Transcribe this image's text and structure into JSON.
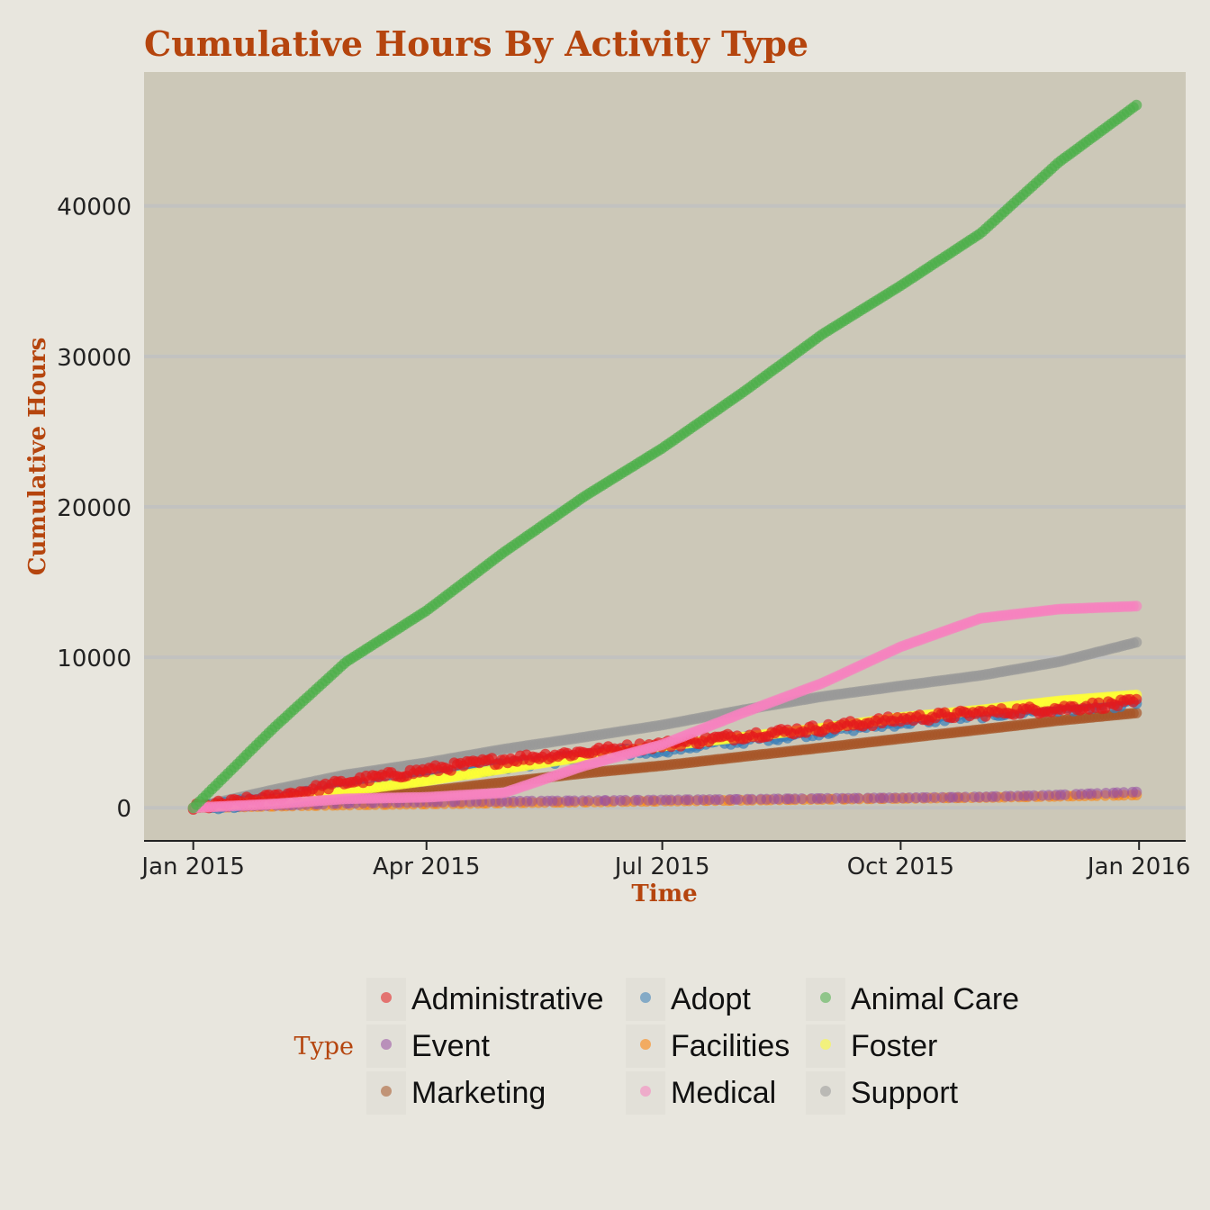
{
  "chart_data": {
    "type": "scatter",
    "title": "Cumulative Hours By Activity Type",
    "xlabel": "Time",
    "ylabel": "Cumulative Hours",
    "x_ticks": [
      "Jan 2015",
      "Apr 2015",
      "Jul 2015",
      "Oct 2015",
      "Jan 2016"
    ],
    "y_ticks": [
      0,
      10000,
      20000,
      30000,
      40000
    ],
    "xlim": [
      "2014-12-13",
      "2016-01-19"
    ],
    "ylim": [
      -2200,
      48900
    ],
    "grid": "horizontal",
    "legend_title": "Type",
    "legend_position": "bottom",
    "colors": {
      "background": "#e8e6de",
      "panel": "#ccc8b8",
      "grid": "#c2c2c0",
      "title": "#b5450e"
    },
    "series": [
      {
        "name": "Administrative",
        "color": "#e41a1c",
        "x": [
          "2015-01-01",
          "2015-02-01",
          "2015-03-01",
          "2015-04-01",
          "2015-05-01",
          "2015-06-01",
          "2015-07-01",
          "2015-08-01",
          "2015-09-01",
          "2015-10-01",
          "2015-11-01",
          "2015-12-01",
          "2015-12-31"
        ],
        "y": [
          0,
          700,
          1700,
          2500,
          3200,
          3700,
          4200,
          4800,
          5300,
          5900,
          6300,
          6600,
          7000
        ]
      },
      {
        "name": "Adopt",
        "color": "#377eb8",
        "x": [
          "2015-01-01",
          "2015-02-01",
          "2015-03-01",
          "2015-04-01",
          "2015-05-01",
          "2015-06-01",
          "2015-07-01",
          "2015-08-01",
          "2015-09-01",
          "2015-10-01",
          "2015-11-01",
          "2015-12-01",
          "2015-12-31"
        ],
        "y": [
          0,
          500,
          1300,
          2100,
          2800,
          3400,
          3900,
          4500,
          5100,
          5700,
          6200,
          6600,
          7000
        ]
      },
      {
        "name": "Animal Care",
        "color": "#4daf4a",
        "x": [
          "2015-01-01",
          "2015-02-01",
          "2015-03-01",
          "2015-04-01",
          "2015-05-01",
          "2015-06-01",
          "2015-07-01",
          "2015-08-01",
          "2015-09-01",
          "2015-10-01",
          "2015-11-01",
          "2015-12-01",
          "2015-12-31"
        ],
        "y": [
          0,
          5300,
          9700,
          13100,
          17000,
          20700,
          23900,
          27600,
          31500,
          34700,
          38200,
          42900,
          46700
        ]
      },
      {
        "name": "Event",
        "color": "#984ea3",
        "x": [
          "2015-01-01",
          "2015-02-01",
          "2015-03-01",
          "2015-04-01",
          "2015-05-01",
          "2015-06-01",
          "2015-07-01",
          "2015-08-01",
          "2015-09-01",
          "2015-10-01",
          "2015-11-01",
          "2015-12-01",
          "2015-12-31"
        ],
        "y": [
          0,
          150,
          300,
          380,
          430,
          470,
          520,
          560,
          620,
          660,
          720,
          850,
          1050
        ]
      },
      {
        "name": "Facilities",
        "color": "#ff7f00",
        "x": [
          "2015-01-01",
          "2015-02-01",
          "2015-03-01",
          "2015-04-01",
          "2015-05-01",
          "2015-06-01",
          "2015-07-01",
          "2015-08-01",
          "2015-09-01",
          "2015-10-01",
          "2015-11-01",
          "2015-12-01",
          "2015-12-31"
        ],
        "y": [
          0,
          100,
          180,
          250,
          320,
          380,
          440,
          500,
          560,
          620,
          680,
          760,
          850
        ]
      },
      {
        "name": "Foster",
        "color": "#ffff33",
        "x": [
          "2015-01-01",
          "2015-02-01",
          "2015-03-01",
          "2015-04-01",
          "2015-05-01",
          "2015-06-01",
          "2015-07-01",
          "2015-08-01",
          "2015-09-01",
          "2015-10-01",
          "2015-11-01",
          "2015-12-01",
          "2015-12-31"
        ],
        "y": [
          0,
          500,
          1100,
          1800,
          2600,
          3400,
          4100,
          4700,
          5300,
          6000,
          6500,
          7100,
          7500
        ]
      },
      {
        "name": "Marketing",
        "color": "#a65628",
        "x": [
          "2015-01-01",
          "2015-02-01",
          "2015-03-01",
          "2015-04-01",
          "2015-05-01",
          "2015-06-01",
          "2015-07-01",
          "2015-08-01",
          "2015-09-01",
          "2015-10-01",
          "2015-11-01",
          "2015-12-01",
          "2015-12-31"
        ],
        "y": [
          0,
          300,
          700,
          1100,
          1700,
          2300,
          2800,
          3400,
          4000,
          4600,
          5200,
          5800,
          6300
        ]
      },
      {
        "name": "Medical",
        "color": "#f781bf",
        "x": [
          "2015-01-01",
          "2015-02-01",
          "2015-03-01",
          "2015-04-01",
          "2015-05-01",
          "2015-06-01",
          "2015-07-01",
          "2015-08-01",
          "2015-09-01",
          "2015-10-01",
          "2015-11-01",
          "2015-12-01",
          "2015-12-31"
        ],
        "y": [
          0,
          250,
          600,
          700,
          1000,
          2800,
          4200,
          6300,
          8300,
          10700,
          12600,
          13200,
          13400
        ]
      },
      {
        "name": "Support",
        "color": "#999999",
        "x": [
          "2015-01-01",
          "2015-02-01",
          "2015-03-01",
          "2015-04-01",
          "2015-05-01",
          "2015-06-01",
          "2015-07-01",
          "2015-08-01",
          "2015-09-01",
          "2015-10-01",
          "2015-11-01",
          "2015-12-01",
          "2015-12-31"
        ],
        "y": [
          0,
          1200,
          2200,
          3000,
          3900,
          4700,
          5500,
          6500,
          7400,
          8100,
          8800,
          9700,
          11000
        ]
      }
    ]
  }
}
